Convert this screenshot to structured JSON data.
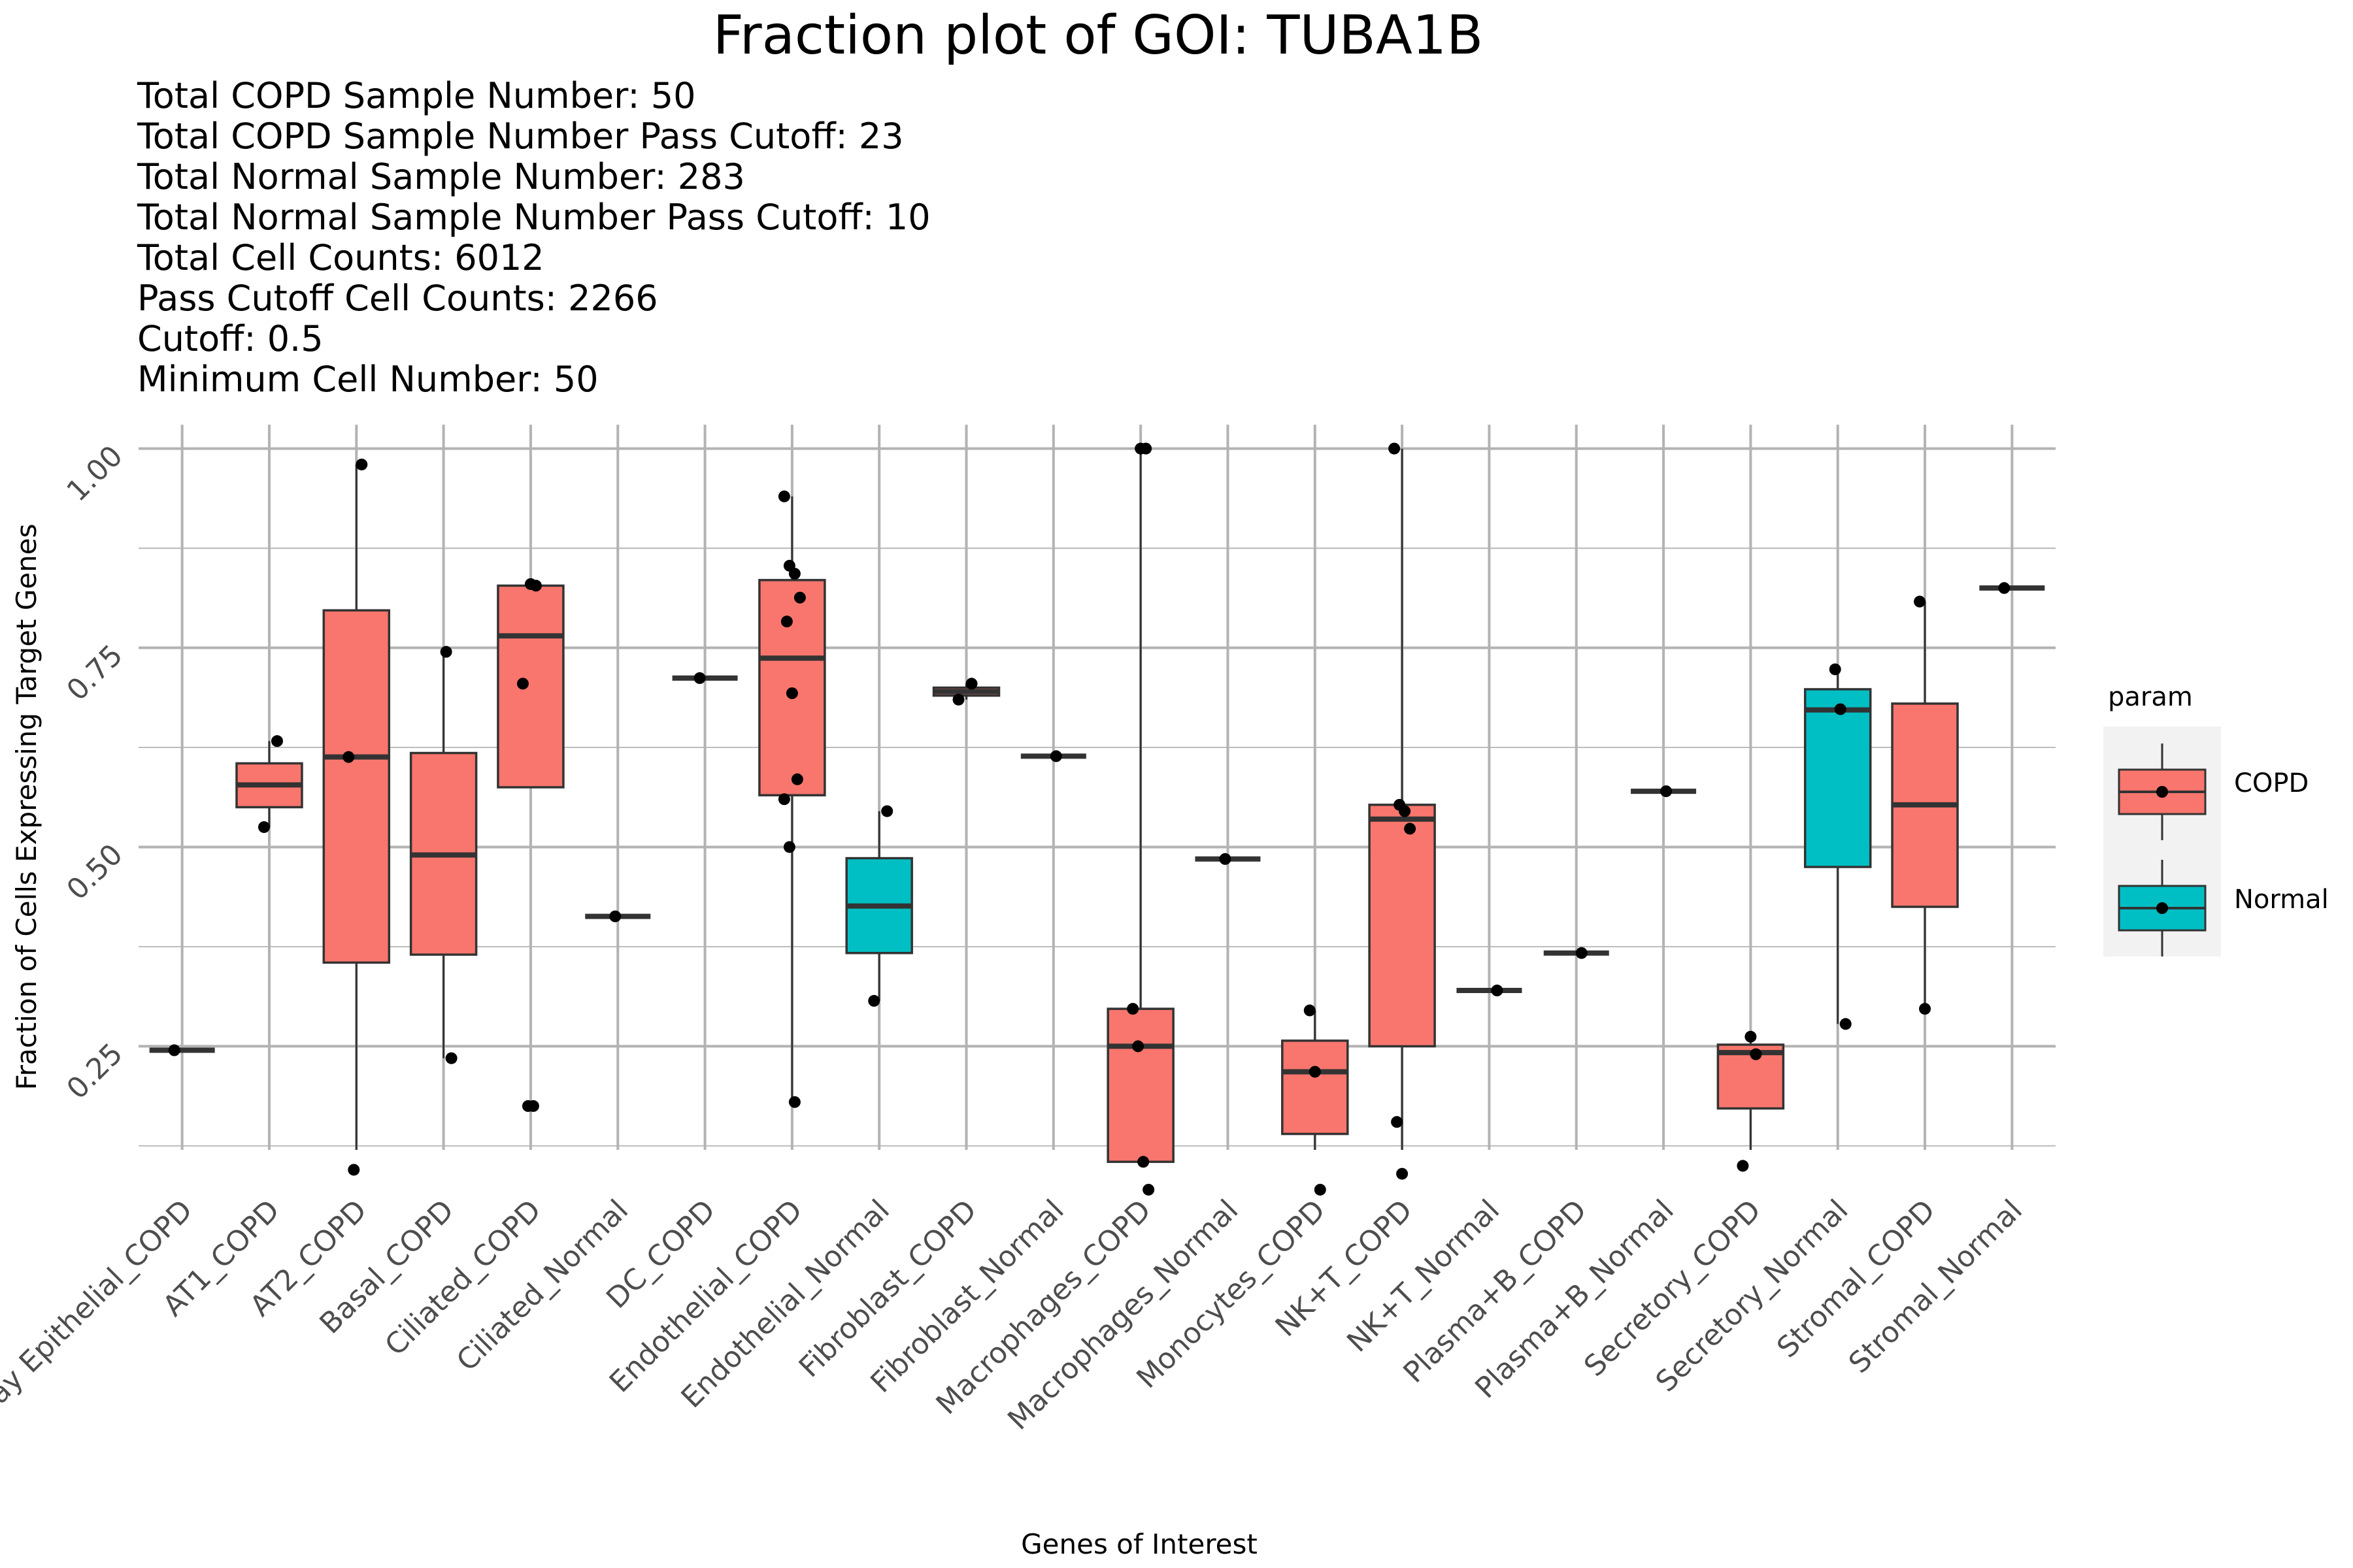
{
  "chart_data": {
    "type": "box",
    "title": "Fraction plot of GOI: TUBA1B",
    "subtitle_lines": [
      "Total COPD Sample Number: 50",
      "Total COPD Sample Number Pass Cutoff: 23",
      "Total Normal Sample Number: 283",
      "Total Normal Sample Number Pass Cutoff: 10",
      "Total Cell Counts: 6012",
      "Pass Cutoff Cell Counts: 2266",
      "Cutoff: 0.5",
      "Minimum Cell Number: 50"
    ],
    "xlabel": "Genes of Interest",
    "ylabel": "Fraction of Cells Expressing Target Genes",
    "y_ticks": [
      0.25,
      0.5,
      0.75,
      1.0
    ],
    "y_tick_labels": [
      "0.25",
      "0.50",
      "0.75",
      "1.00"
    ],
    "ylim": [
      0.12,
      1.03
    ],
    "legend": {
      "title": "param",
      "position": "right",
      "entries": [
        {
          "name": "COPD",
          "color": "#F8766D"
        },
        {
          "name": "Normal",
          "color": "#00BFC4"
        }
      ]
    },
    "categories": [
      {
        "label": "Airway Epithelial_COPD",
        "param": "COPD",
        "min": 0.245,
        "q1": 0.245,
        "median": 0.245,
        "q3": 0.245,
        "max": 0.245,
        "points": [
          0.245
        ]
      },
      {
        "label": "AT1_COPD",
        "param": "COPD",
        "min": 0.525,
        "q1": 0.55,
        "median": 0.578,
        "q3": 0.605,
        "max": 0.633,
        "points": [
          0.633,
          0.525
        ]
      },
      {
        "label": "AT2_COPD",
        "param": "COPD",
        "min": 0.095,
        "q1": 0.355,
        "median": 0.613,
        "q3": 0.797,
        "max": 0.98,
        "points": [
          0.98,
          0.613,
          0.095
        ]
      },
      {
        "label": "Basal_COPD",
        "param": "COPD",
        "min": 0.235,
        "q1": 0.365,
        "median": 0.49,
        "q3": 0.618,
        "max": 0.745,
        "points": [
          0.745,
          0.235
        ]
      },
      {
        "label": "Ciliated_COPD",
        "param": "COPD",
        "min": 0.575,
        "q1": 0.575,
        "median": 0.765,
        "q3": 0.828,
        "max": 0.828,
        "points": [
          0.83,
          0.828,
          0.705,
          0.175,
          0.175
        ]
      },
      {
        "label": "Ciliated_Normal",
        "param": "COPD",
        "min": 0.413,
        "q1": 0.413,
        "median": 0.413,
        "q3": 0.413,
        "max": 0.413,
        "points": [
          0.413
        ]
      },
      {
        "label": "DC_COPD",
        "param": "COPD",
        "min": 0.712,
        "q1": 0.712,
        "median": 0.712,
        "q3": 0.712,
        "max": 0.712,
        "points": [
          0.712
        ]
      },
      {
        "label": "Endothelial_COPD",
        "param": "COPD",
        "min": 0.18,
        "q1": 0.565,
        "median": 0.737,
        "q3": 0.835,
        "max": 0.94,
        "points": [
          0.94,
          0.853,
          0.843,
          0.813,
          0.783,
          0.693,
          0.585,
          0.56,
          0.5,
          0.18
        ]
      },
      {
        "label": "Endothelial_Normal",
        "param": "Normal",
        "min": 0.307,
        "q1": 0.367,
        "median": 0.426,
        "q3": 0.486,
        "max": 0.545,
        "points": [
          0.545,
          0.307
        ]
      },
      {
        "label": "Fibroblast_COPD",
        "param": "COPD",
        "min": 0.685,
        "q1": 0.69,
        "median": 0.695,
        "q3": 0.7,
        "max": 0.705,
        "points": [
          0.705,
          0.685
        ]
      },
      {
        "label": "Fibroblast_Normal",
        "param": "COPD",
        "min": 0.614,
        "q1": 0.614,
        "median": 0.614,
        "q3": 0.614,
        "max": 0.614,
        "points": [
          0.614
        ]
      },
      {
        "label": "Macrophages_COPD",
        "param": "COPD",
        "min": 0.065,
        "q1": 0.105,
        "median": 0.25,
        "q3": 0.297,
        "max": 1.0,
        "points": [
          1.0,
          1.0,
          0.297,
          0.25,
          0.105,
          0.065
        ]
      },
      {
        "label": "Macrophages_Normal",
        "param": "COPD",
        "min": 0.485,
        "q1": 0.485,
        "median": 0.485,
        "q3": 0.485,
        "max": 0.485,
        "points": [
          0.485
        ]
      },
      {
        "label": "Monocytes_COPD",
        "param": "COPD",
        "min": 0.05,
        "q1": 0.14,
        "median": 0.218,
        "q3": 0.257,
        "max": 0.295,
        "points": [
          0.295,
          0.218,
          0.05
        ]
      },
      {
        "label": "NK+T_COPD",
        "param": "COPD",
        "min": 0.09,
        "q1": 0.25,
        "median": 0.535,
        "q3": 0.553,
        "max": 1.0,
        "points": [
          1.0,
          0.553,
          0.545,
          0.523,
          0.155,
          0.09
        ]
      },
      {
        "label": "NK+T_Normal",
        "param": "COPD",
        "min": 0.32,
        "q1": 0.32,
        "median": 0.32,
        "q3": 0.32,
        "max": 0.32,
        "points": [
          0.32
        ]
      },
      {
        "label": "Plasma+B_COPD",
        "param": "COPD",
        "min": 0.367,
        "q1": 0.367,
        "median": 0.367,
        "q3": 0.367,
        "max": 0.367,
        "points": [
          0.367
        ]
      },
      {
        "label": "Plasma+B_Normal",
        "param": "COPD",
        "min": 0.57,
        "q1": 0.57,
        "median": 0.57,
        "q3": 0.57,
        "max": 0.57,
        "points": [
          0.57
        ]
      },
      {
        "label": "Secretory_COPD",
        "param": "COPD",
        "min": 0.1,
        "q1": 0.172,
        "median": 0.242,
        "q3": 0.252,
        "max": 0.262,
        "points": [
          0.262,
          0.24,
          0.1
        ]
      },
      {
        "label": "Secretory_Normal",
        "param": "Normal",
        "min": 0.278,
        "q1": 0.475,
        "median": 0.672,
        "q3": 0.698,
        "max": 0.723,
        "points": [
          0.723,
          0.673,
          0.278
        ]
      },
      {
        "label": "Stromal_COPD",
        "param": "COPD",
        "min": 0.297,
        "q1": 0.425,
        "median": 0.553,
        "q3": 0.68,
        "max": 0.808,
        "points": [
          0.808,
          0.297
        ]
      },
      {
        "label": "Stromal_Normal",
        "param": "COPD",
        "min": 0.825,
        "q1": 0.825,
        "median": 0.825,
        "q3": 0.825,
        "max": 0.825,
        "points": [
          0.825
        ]
      }
    ]
  }
}
